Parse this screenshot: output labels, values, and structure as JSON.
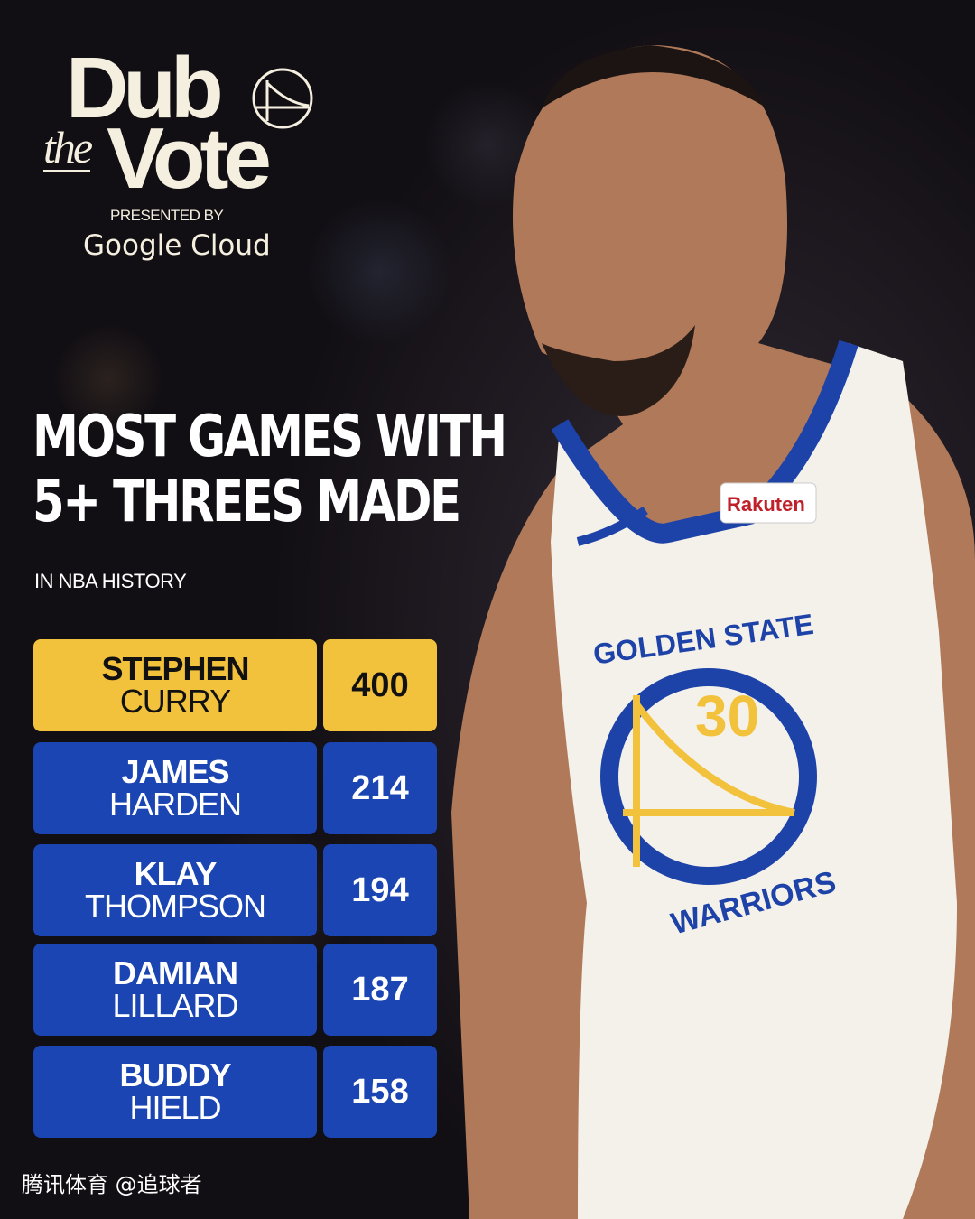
{
  "brand": {
    "logo_dub": "Dub",
    "logo_the": "the",
    "logo_vote": "Vote",
    "presented_by": "PRESENTED BY",
    "sponsor": "Google Cloud"
  },
  "headline": {
    "line1": "MOST GAMES WITH",
    "line2": "5+ THREES MADE",
    "subtitle": "IN NBA HISTORY"
  },
  "jersey": {
    "team_text": "GOLDEN STATE",
    "team_bottom": "WARRIORS",
    "number": "30",
    "sponsor_patch": "Rakuten"
  },
  "colors": {
    "gold": "#f2c23d",
    "blue": "#1b45b2"
  },
  "rankings": [
    {
      "first": "STEPHEN",
      "last": "CURRY",
      "value": "400",
      "highlight": true
    },
    {
      "first": "JAMES",
      "last": "HARDEN",
      "value": "214"
    },
    {
      "first": "KLAY",
      "last": "THOMPSON",
      "value": "194"
    },
    {
      "first": "DAMIAN",
      "last": "LILLARD",
      "value": "187"
    },
    {
      "first": "BUDDY",
      "last": "HIELD",
      "value": "158"
    }
  ],
  "watermark": "腾讯体育 @追球者"
}
